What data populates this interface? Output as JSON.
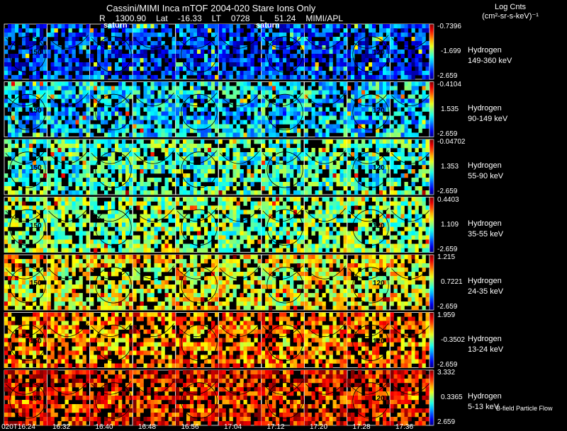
{
  "chart_data": {
    "type": "heatmap",
    "title": "Cassini/MIMI Inca mTOF  2004-020   Stare   Ions Only",
    "header": {
      "r_label": "R",
      "r_value": "1300.90",
      "lat_label": "Lat",
      "lat_value": "-16.33",
      "lt_label": "LT",
      "lt_value": "0728",
      "l_label": "L",
      "l_value": "51.24",
      "source": "MIMI/APL"
    },
    "unit_line1": "Log Cnts",
    "unit_line2": "(cm²-sr-s-keV)⁻¹",
    "subpanel_labels": [
      "saturn",
      "saturn"
    ],
    "contour_labels": [
      "150",
      "120"
    ],
    "time_ticks": [
      "020T16:24",
      "16:32",
      "16:40",
      "16:48",
      "16:56",
      "17:04",
      "17:12",
      "17:20",
      "17:28",
      "17:36"
    ],
    "rows": [
      {
        "species": "Hydrogen",
        "energy": "149-360 keV",
        "cb_max": "-0.7396",
        "cb_mid": "-1.699",
        "cb_min": "-2.659",
        "level": 0.12
      },
      {
        "species": "Hydrogen",
        "energy": "90-149 keV",
        "cb_max": "-0.4104",
        "cb_mid": "1.535",
        "cb_min": "-2.659",
        "level": 0.28
      },
      {
        "species": "Hydrogen",
        "energy": "55-90 keV",
        "cb_max": "-0.04702",
        "cb_mid": "1.353",
        "cb_min": "-2.659",
        "level": 0.38
      },
      {
        "species": "Hydrogen",
        "energy": "35-55 keV",
        "cb_max": "0.4403",
        "cb_mid": "1.109",
        "cb_min": "-2.659",
        "level": 0.45
      },
      {
        "species": "Hydrogen",
        "energy": "24-35 keV",
        "cb_max": "1.215",
        "cb_mid": "0.7221",
        "cb_min": "-2.659",
        "level": 0.55
      },
      {
        "species": "Hydrogen",
        "energy": "13-24 keV",
        "cb_max": "1.959",
        "cb_mid": "-0.3502",
        "cb_min": "-2.659",
        "level": 0.68
      },
      {
        "species": "Hydrogen",
        "energy": "5-13 keV",
        "cb_max": "3.332",
        "cb_mid": "0.3365",
        "cb_min": "2.659",
        "level": 0.78
      }
    ],
    "footer": "B-field Particle Flow"
  }
}
